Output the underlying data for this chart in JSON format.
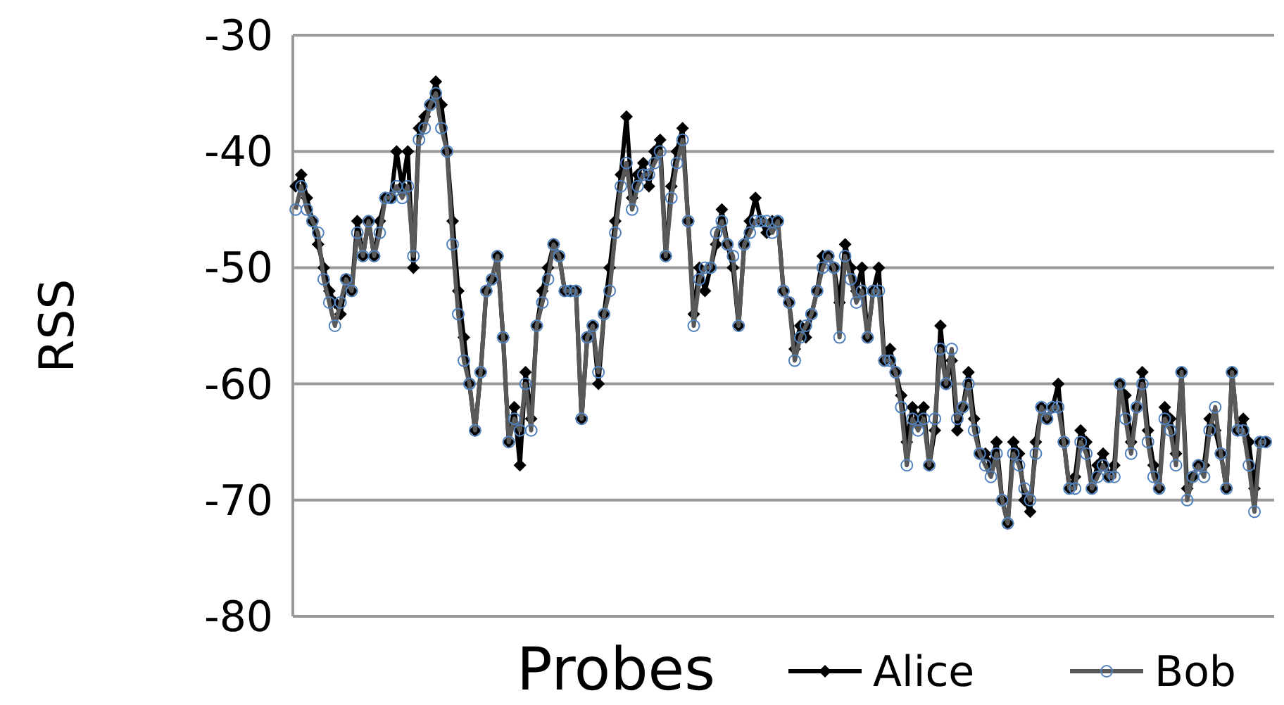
{
  "chart_data": {
    "type": "line",
    "xlabel": "Probes",
    "ylabel": "RSS",
    "ylim": [
      -80,
      -30
    ],
    "yticks": [
      -80,
      -70,
      -60,
      -50,
      -40,
      -30
    ],
    "grid": "y",
    "legend": "bottom",
    "tick_labels": "y",
    "categories": [
      null,
      null,
      null,
      null,
      null,
      null,
      null,
      null,
      null,
      null,
      null,
      null,
      null,
      null,
      null,
      null,
      null,
      null,
      null,
      null,
      null,
      null,
      null,
      null,
      null,
      null,
      null,
      null,
      null,
      null,
      null,
      null,
      null,
      null,
      null,
      null,
      null,
      null,
      null,
      null,
      null,
      null,
      null,
      null,
      null,
      null,
      null,
      null,
      null,
      null,
      null,
      null,
      null,
      null,
      null,
      null,
      null,
      null,
      null,
      null,
      null,
      null,
      null,
      null,
      null,
      null,
      null,
      null,
      null,
      null,
      null,
      null,
      null,
      null,
      null,
      null,
      null,
      null,
      null,
      null,
      null,
      null,
      null,
      null,
      null,
      null,
      null,
      null,
      null,
      null,
      null,
      null,
      null,
      null,
      null,
      null,
      null,
      null,
      null,
      null,
      null,
      null,
      null,
      null,
      null,
      null,
      null,
      null,
      null,
      null,
      null,
      null,
      null,
      null,
      null,
      null,
      null,
      null,
      null,
      null,
      null,
      null,
      null,
      null,
      null,
      null,
      null,
      null,
      null,
      null,
      null,
      null,
      null,
      null,
      null,
      null,
      null,
      null,
      null,
      null,
      null,
      null,
      null,
      null,
      null,
      null,
      null,
      null,
      null,
      null,
      null,
      null,
      null,
      null,
      null,
      null,
      null,
      null,
      null,
      null,
      null,
      null,
      null,
      null,
      null,
      null,
      null,
      null,
      null,
      null,
      null,
      null,
      null,
      null
    ],
    "series": [
      {
        "name": "Alice",
        "color": "#000000",
        "marker": "diamond",
        "values": [
          -43,
          -42,
          -44,
          -46,
          -48,
          -50,
          -52,
          -53,
          -54,
          -51,
          -52,
          -46,
          -49,
          -46,
          -49,
          -46,
          -44,
          -44,
          -40,
          -43,
          -40,
          -50,
          -38,
          -37,
          -36,
          -34,
          -36,
          -40,
          -46,
          -52,
          -56,
          -60,
          -64,
          -59,
          -52,
          -51,
          -49,
          -56,
          -65,
          -62,
          -67,
          -59,
          -63,
          -55,
          -52,
          -50,
          -48,
          -49,
          -52,
          -52,
          -52,
          -63,
          -56,
          -55,
          -60,
          -54,
          -50,
          -46,
          -42,
          -37,
          -44,
          -42,
          -41,
          -43,
          -40,
          -39,
          -49,
          -43,
          -40,
          -38,
          -46,
          -54,
          -50,
          -52,
          -50,
          -48,
          -45,
          -48,
          -50,
          -55,
          -48,
          -46,
          -44,
          -46,
          -47,
          -46,
          -46,
          -52,
          -53,
          -57,
          -55,
          -56,
          -54,
          -52,
          -49,
          -49,
          -50,
          -53,
          -48,
          -50,
          -52,
          -50,
          -56,
          -52,
          -50,
          -58,
          -57,
          -59,
          -61,
          -65,
          -62,
          -63,
          -62,
          -67,
          -64,
          -55,
          -60,
          -58,
          -64,
          -62,
          -59,
          -63,
          -66,
          -66,
          -67,
          -65,
          -70,
          -72,
          -65,
          -66,
          -70,
          -71,
          -65,
          -62,
          -63,
          -62,
          -60,
          -65,
          -69,
          -68,
          -64,
          -65,
          -69,
          -67,
          -66,
          -68,
          -67,
          -60,
          -61,
          -65,
          -62,
          -59,
          -64,
          -67,
          -69,
          -62,
          -63,
          -66,
          -59,
          -69,
          -68,
          -67,
          -67,
          -63,
          -64,
          -66,
          -69,
          -59,
          -64,
          -63,
          -65,
          -69,
          -65,
          -65
        ]
      },
      {
        "name": "Bob",
        "color": "#595959",
        "marker": "circle",
        "values": [
          -45,
          -43,
          -45,
          -46,
          -47,
          -51,
          -53,
          -55,
          -53,
          -51,
          -52,
          -47,
          -49,
          -46,
          -49,
          -47,
          -44,
          -44,
          -43,
          -44,
          -43,
          -49,
          -39,
          -38,
          -36,
          -35,
          -38,
          -40,
          -48,
          -54,
          -58,
          -60,
          -64,
          -59,
          -52,
          -51,
          -49,
          -56,
          -65,
          -63,
          -64,
          -60,
          -64,
          -55,
          -53,
          -51,
          -48,
          -49,
          -52,
          -52,
          -52,
          -63,
          -56,
          -55,
          -59,
          -54,
          -52,
          -47,
          -43,
          -41,
          -45,
          -43,
          -42,
          -42,
          -41,
          -40,
          -49,
          -44,
          -41,
          -39,
          -46,
          -55,
          -51,
          -50,
          -50,
          -47,
          -46,
          -48,
          -49,
          -55,
          -48,
          -47,
          -46,
          -46,
          -46,
          -47,
          -46,
          -52,
          -53,
          -58,
          -56,
          -55,
          -54,
          -52,
          -50,
          -49,
          -50,
          -56,
          -49,
          -51,
          -53,
          -52,
          -56,
          -52,
          -52,
          -58,
          -58,
          -59,
          -62,
          -67,
          -63,
          -64,
          -63,
          -67,
          -63,
          -57,
          -60,
          -57,
          -63,
          -62,
          -60,
          -64,
          -66,
          -67,
          -68,
          -66,
          -70,
          -72,
          -66,
          -67,
          -69,
          -70,
          -66,
          -62,
          -63,
          -62,
          -62,
          -65,
          -69,
          -69,
          -65,
          -66,
          -69,
          -68,
          -67,
          -68,
          -68,
          -60,
          -63,
          -66,
          -62,
          -60,
          -65,
          -68,
          -69,
          -63,
          -64,
          -67,
          -59,
          -70,
          -68,
          -67,
          -68,
          -64,
          -62,
          -66,
          -69,
          -59,
          -64,
          -64,
          -67,
          -71,
          -65,
          -65
        ]
      }
    ]
  }
}
